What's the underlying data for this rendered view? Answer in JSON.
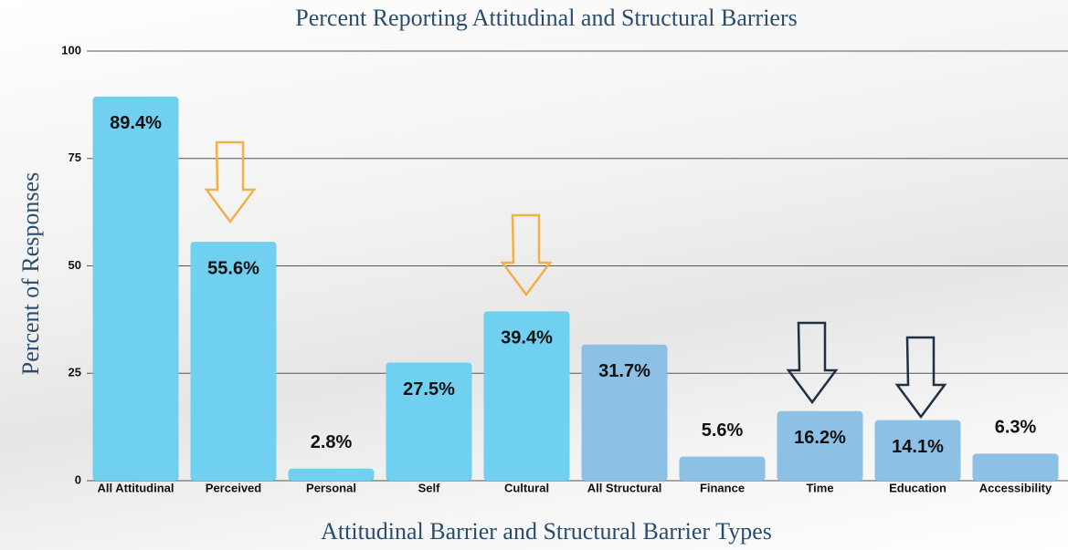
{
  "chart_data": {
    "type": "bar",
    "title": "Percent Reporting Attitudinal and Structural Barriers",
    "xlabel": "Attitudinal Barrier and Structural Barrier Types",
    "ylabel": "Percent of Responses",
    "categories": [
      "All Attitudinal",
      "Perceived",
      "Personal",
      "Self",
      "Cultural",
      "All Structural",
      "Finance",
      "Time",
      "Education",
      "Accessibility"
    ],
    "values": [
      89.4,
      55.6,
      2.8,
      27.5,
      39.4,
      31.7,
      5.6,
      16.2,
      14.1,
      6.3
    ],
    "value_labels": [
      "89.4%",
      "55.6%",
      "2.8%",
      "27.5%",
      "39.4%",
      "31.7%",
      "5.6%",
      "16.2%",
      "14.1%",
      "6.3%"
    ],
    "colors": [
      "#6fd0f0",
      "#6fd0f0",
      "#6fd0f0",
      "#6fd0f0",
      "#6fd0f0",
      "#8cc0e4",
      "#8cc0e4",
      "#8cc0e4",
      "#8cc0e4",
      "#8cc0e4"
    ],
    "ylim": [
      0,
      100
    ],
    "yticks": [
      0,
      25,
      50,
      75,
      100
    ],
    "grid": true
  }
}
